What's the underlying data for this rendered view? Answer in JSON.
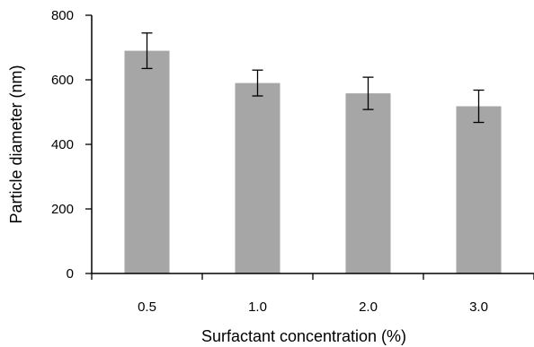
{
  "chart_data": {
    "type": "bar",
    "title": "",
    "xlabel": "Surfactant concentration (%)",
    "ylabel": "Particle diameter (nm)",
    "categories": [
      "0.5",
      "1.0",
      "2.0",
      "3.0"
    ],
    "values": [
      690,
      590,
      558,
      518
    ],
    "errors": [
      55,
      40,
      50,
      50
    ],
    "ylim": [
      0,
      800
    ],
    "yticks": [
      0,
      200,
      400,
      600,
      800
    ],
    "grid": false,
    "bar_color": "#a6a6a6",
    "axis_color": "#000000"
  }
}
